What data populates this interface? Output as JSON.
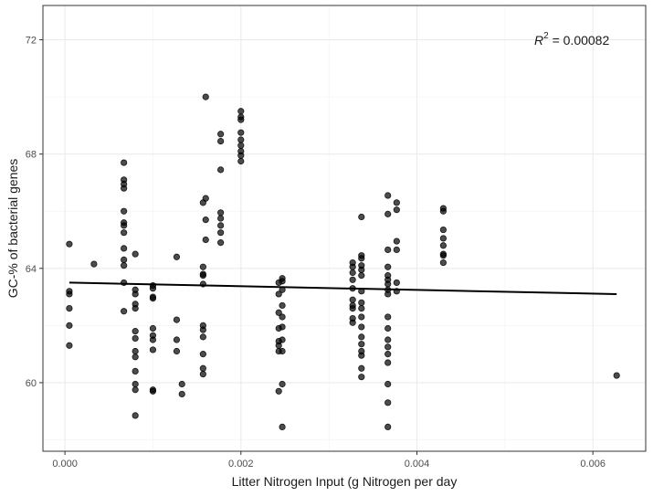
{
  "chart_data": {
    "type": "scatter",
    "title": "",
    "xlabel": "Litter Nitrogen Input (g Nitrogen per day",
    "ylabel": "GC-% of bacterial genes",
    "xlim": [
      -0.00025,
      0.0066
    ],
    "ylim": [
      57.6,
      73.2
    ],
    "x_ticks": [
      0.0,
      0.002,
      0.004,
      0.006
    ],
    "x_tick_labels": [
      "0.000",
      "0.002",
      "0.004",
      "0.006"
    ],
    "y_ticks": [
      60,
      64,
      68,
      72
    ],
    "y_tick_labels": [
      "60",
      "64",
      "68",
      "72"
    ],
    "grid": true,
    "legend": "none",
    "annotation": {
      "symbol": "R",
      "superscript": "2",
      "text": " = 0.00082",
      "position": "top-right"
    },
    "regression_line": {
      "x": [
        5e-05,
        0.00627
      ],
      "y": [
        63.5,
        63.1
      ]
    },
    "points": [
      {
        "x": 5e-05,
        "y": 64.85
      },
      {
        "x": 5e-05,
        "y": 63.2
      },
      {
        "x": 5e-05,
        "y": 63.1
      },
      {
        "x": 5e-05,
        "y": 62.6
      },
      {
        "x": 5e-05,
        "y": 62.0
      },
      {
        "x": 5e-05,
        "y": 61.3
      },
      {
        "x": 0.00033,
        "y": 64.15
      },
      {
        "x": 0.00067,
        "y": 67.7
      },
      {
        "x": 0.00067,
        "y": 67.1
      },
      {
        "x": 0.00067,
        "y": 66.95
      },
      {
        "x": 0.00067,
        "y": 66.8
      },
      {
        "x": 0.00067,
        "y": 66.0
      },
      {
        "x": 0.00067,
        "y": 65.6
      },
      {
        "x": 0.00067,
        "y": 65.5
      },
      {
        "x": 0.00067,
        "y": 65.25
      },
      {
        "x": 0.00067,
        "y": 64.7
      },
      {
        "x": 0.00067,
        "y": 64.3
      },
      {
        "x": 0.00067,
        "y": 64.1
      },
      {
        "x": 0.00067,
        "y": 63.5
      },
      {
        "x": 0.00067,
        "y": 62.5
      },
      {
        "x": 0.0008,
        "y": 64.5
      },
      {
        "x": 0.0008,
        "y": 63.25
      },
      {
        "x": 0.0008,
        "y": 63.1
      },
      {
        "x": 0.0008,
        "y": 62.75
      },
      {
        "x": 0.0008,
        "y": 62.6
      },
      {
        "x": 0.0008,
        "y": 61.8
      },
      {
        "x": 0.0008,
        "y": 61.55
      },
      {
        "x": 0.0008,
        "y": 61.1
      },
      {
        "x": 0.0008,
        "y": 60.9
      },
      {
        "x": 0.0008,
        "y": 60.4
      },
      {
        "x": 0.0008,
        "y": 59.95
      },
      {
        "x": 0.0008,
        "y": 59.75
      },
      {
        "x": 0.0008,
        "y": 58.85
      },
      {
        "x": 0.001,
        "y": 63.4
      },
      {
        "x": 0.001,
        "y": 63.3
      },
      {
        "x": 0.001,
        "y": 63.0
      },
      {
        "x": 0.001,
        "y": 62.95
      },
      {
        "x": 0.001,
        "y": 61.9
      },
      {
        "x": 0.001,
        "y": 61.65
      },
      {
        "x": 0.001,
        "y": 61.5
      },
      {
        "x": 0.001,
        "y": 61.15
      },
      {
        "x": 0.001,
        "y": 59.75
      },
      {
        "x": 0.001,
        "y": 59.7
      },
      {
        "x": 0.00127,
        "y": 64.4
      },
      {
        "x": 0.00127,
        "y": 62.2
      },
      {
        "x": 0.00127,
        "y": 61.5
      },
      {
        "x": 0.00127,
        "y": 61.1
      },
      {
        "x": 0.00133,
        "y": 59.95
      },
      {
        "x": 0.00133,
        "y": 59.6
      },
      {
        "x": 0.00157,
        "y": 66.3
      },
      {
        "x": 0.00157,
        "y": 64.05
      },
      {
        "x": 0.00157,
        "y": 63.8
      },
      {
        "x": 0.00157,
        "y": 63.75
      },
      {
        "x": 0.00157,
        "y": 63.45
      },
      {
        "x": 0.00157,
        "y": 62.0
      },
      {
        "x": 0.00157,
        "y": 61.85
      },
      {
        "x": 0.00157,
        "y": 61.6
      },
      {
        "x": 0.00157,
        "y": 61.0
      },
      {
        "x": 0.00157,
        "y": 60.5
      },
      {
        "x": 0.00157,
        "y": 60.3
      },
      {
        "x": 0.0016,
        "y": 70.0
      },
      {
        "x": 0.0016,
        "y": 66.45
      },
      {
        "x": 0.0016,
        "y": 65.7
      },
      {
        "x": 0.0016,
        "y": 65.0
      },
      {
        "x": 0.00177,
        "y": 68.7
      },
      {
        "x": 0.00177,
        "y": 68.45
      },
      {
        "x": 0.00177,
        "y": 67.45
      },
      {
        "x": 0.00177,
        "y": 65.95
      },
      {
        "x": 0.00177,
        "y": 65.75
      },
      {
        "x": 0.00177,
        "y": 65.5
      },
      {
        "x": 0.00177,
        "y": 65.25
      },
      {
        "x": 0.00177,
        "y": 64.9
      },
      {
        "x": 0.002,
        "y": 69.5
      },
      {
        "x": 0.002,
        "y": 69.3
      },
      {
        "x": 0.002,
        "y": 69.2
      },
      {
        "x": 0.002,
        "y": 68.75
      },
      {
        "x": 0.002,
        "y": 68.5
      },
      {
        "x": 0.002,
        "y": 68.3
      },
      {
        "x": 0.002,
        "y": 68.1
      },
      {
        "x": 0.002,
        "y": 67.95
      },
      {
        "x": 0.002,
        "y": 67.75
      },
      {
        "x": 0.00243,
        "y": 63.5
      },
      {
        "x": 0.00243,
        "y": 63.1
      },
      {
        "x": 0.00243,
        "y": 62.45
      },
      {
        "x": 0.00243,
        "y": 61.9
      },
      {
        "x": 0.00243,
        "y": 61.45
      },
      {
        "x": 0.00243,
        "y": 61.3
      },
      {
        "x": 0.00243,
        "y": 61.1
      },
      {
        "x": 0.00243,
        "y": 59.7
      },
      {
        "x": 0.00247,
        "y": 63.65
      },
      {
        "x": 0.00247,
        "y": 63.55
      },
      {
        "x": 0.00247,
        "y": 63.25
      },
      {
        "x": 0.00247,
        "y": 62.7
      },
      {
        "x": 0.00247,
        "y": 62.3
      },
      {
        "x": 0.00247,
        "y": 61.95
      },
      {
        "x": 0.00247,
        "y": 61.5
      },
      {
        "x": 0.00247,
        "y": 61.1
      },
      {
        "x": 0.00247,
        "y": 59.95
      },
      {
        "x": 0.00247,
        "y": 58.45
      },
      {
        "x": 0.00327,
        "y": 64.2
      },
      {
        "x": 0.00327,
        "y": 64.05
      },
      {
        "x": 0.00327,
        "y": 63.85
      },
      {
        "x": 0.00327,
        "y": 63.6
      },
      {
        "x": 0.00327,
        "y": 63.3
      },
      {
        "x": 0.00327,
        "y": 62.9
      },
      {
        "x": 0.00327,
        "y": 62.7
      },
      {
        "x": 0.00327,
        "y": 62.6
      },
      {
        "x": 0.00327,
        "y": 62.25
      },
      {
        "x": 0.00327,
        "y": 62.1
      },
      {
        "x": 0.00337,
        "y": 65.8
      },
      {
        "x": 0.00337,
        "y": 64.45
      },
      {
        "x": 0.00337,
        "y": 64.35
      },
      {
        "x": 0.00337,
        "y": 64.1
      },
      {
        "x": 0.00337,
        "y": 63.95
      },
      {
        "x": 0.00337,
        "y": 63.75
      },
      {
        "x": 0.00337,
        "y": 63.2
      },
      {
        "x": 0.00337,
        "y": 62.8
      },
      {
        "x": 0.00337,
        "y": 62.6
      },
      {
        "x": 0.00337,
        "y": 62.3
      },
      {
        "x": 0.00337,
        "y": 61.95
      },
      {
        "x": 0.00337,
        "y": 61.6
      },
      {
        "x": 0.00337,
        "y": 61.35
      },
      {
        "x": 0.00337,
        "y": 61.1
      },
      {
        "x": 0.00337,
        "y": 60.95
      },
      {
        "x": 0.00337,
        "y": 60.5
      },
      {
        "x": 0.00337,
        "y": 60.2
      },
      {
        "x": 0.00367,
        "y": 66.55
      },
      {
        "x": 0.00367,
        "y": 65.9
      },
      {
        "x": 0.00367,
        "y": 64.65
      },
      {
        "x": 0.00367,
        "y": 64.05
      },
      {
        "x": 0.00367,
        "y": 63.75
      },
      {
        "x": 0.00367,
        "y": 63.6
      },
      {
        "x": 0.00367,
        "y": 63.45
      },
      {
        "x": 0.00367,
        "y": 63.25
      },
      {
        "x": 0.00367,
        "y": 63.1
      },
      {
        "x": 0.00367,
        "y": 62.3
      },
      {
        "x": 0.00367,
        "y": 61.9
      },
      {
        "x": 0.00367,
        "y": 61.5
      },
      {
        "x": 0.00367,
        "y": 61.25
      },
      {
        "x": 0.00367,
        "y": 61.0
      },
      {
        "x": 0.00367,
        "y": 60.7
      },
      {
        "x": 0.00367,
        "y": 59.95
      },
      {
        "x": 0.00367,
        "y": 59.3
      },
      {
        "x": 0.00367,
        "y": 58.45
      },
      {
        "x": 0.00377,
        "y": 66.3
      },
      {
        "x": 0.00377,
        "y": 66.05
      },
      {
        "x": 0.00377,
        "y": 64.95
      },
      {
        "x": 0.00377,
        "y": 64.65
      },
      {
        "x": 0.00377,
        "y": 63.5
      },
      {
        "x": 0.00377,
        "y": 63.2
      },
      {
        "x": 0.0043,
        "y": 66.1
      },
      {
        "x": 0.0043,
        "y": 66.0
      },
      {
        "x": 0.0043,
        "y": 65.35
      },
      {
        "x": 0.0043,
        "y": 65.05
      },
      {
        "x": 0.0043,
        "y": 64.8
      },
      {
        "x": 0.0043,
        "y": 64.5
      },
      {
        "x": 0.0043,
        "y": 64.45
      },
      {
        "x": 0.0043,
        "y": 64.2
      },
      {
        "x": 0.00627,
        "y": 60.25
      }
    ]
  }
}
